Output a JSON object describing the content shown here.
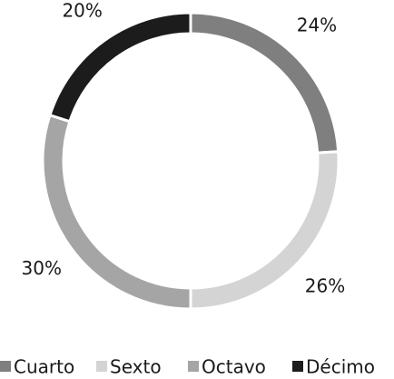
{
  "chart_data": {
    "type": "donut",
    "categories": [
      "Cuarto",
      "Sexto",
      "Octavo",
      "Décimo"
    ],
    "values": [
      24,
      26,
      30,
      20
    ],
    "value_labels": [
      "24%",
      "26%",
      "30%",
      "20%"
    ],
    "colors": [
      "#7f7f7f",
      "#d4d4d4",
      "#a5a5a5",
      "#1c1c1c"
    ],
    "legend": "bottom"
  }
}
